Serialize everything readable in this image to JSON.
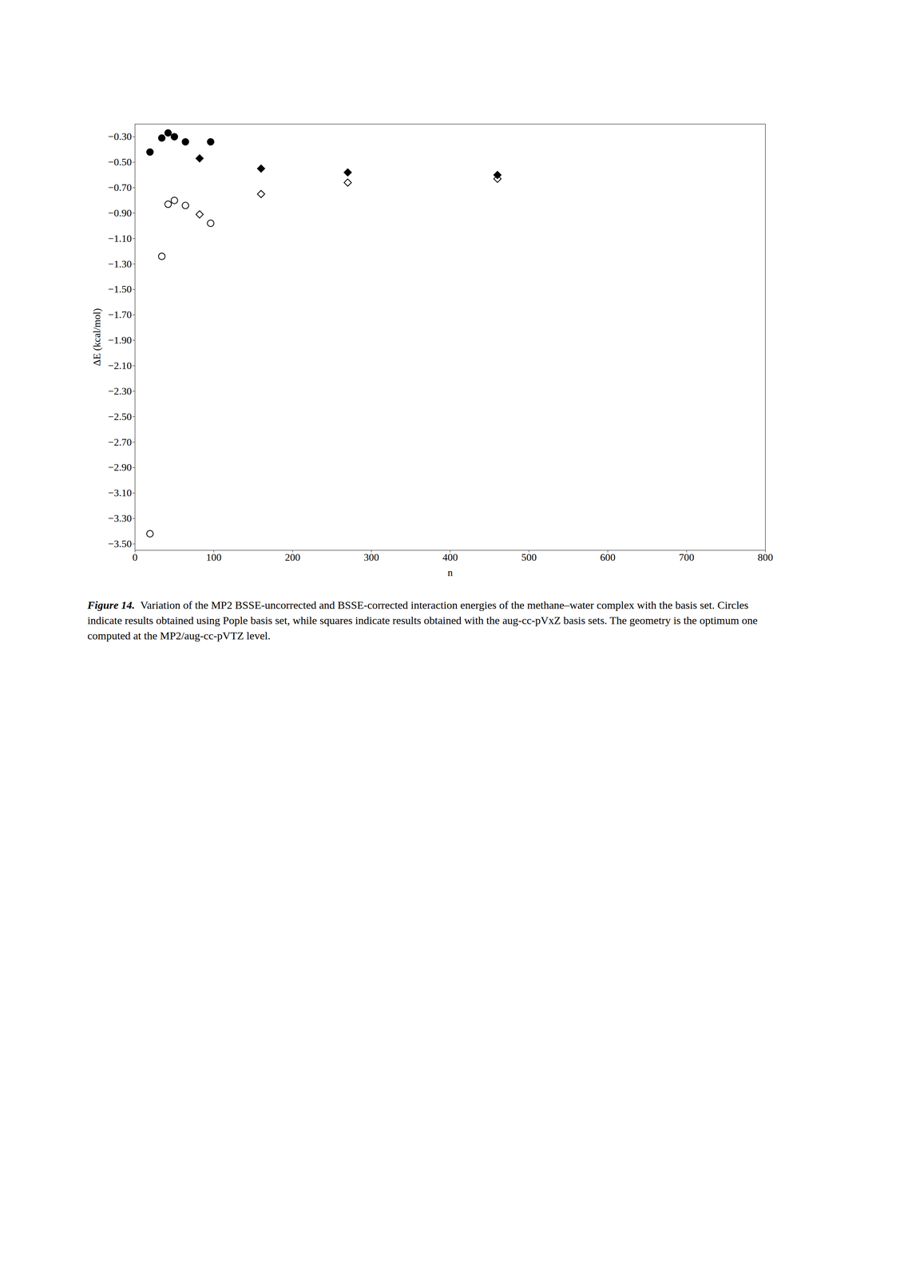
{
  "chart_data": {
    "type": "scatter",
    "title": "Figure 14.",
    "subtitle": "Variation of the MP2 BSSE-uncorrected and BSSE-corrected interaction energies of the methane–water complex with the basis set. Circles indicate results obtained using Pople basis set, while squares indicate results obtained with the aug-cc-pVxZ basis sets. The geometry is the optimum one computed at the MP2/aug-cc-pVTZ level.",
    "xlabel": "n",
    "ylabel": "ΔE (kcal/mol)",
    "xlim": [
      0,
      800
    ],
    "ylim": [
      -3.55,
      -0.2
    ],
    "xticks": [
      0,
      100,
      200,
      300,
      400,
      500,
      600,
      700,
      800
    ],
    "yticks": [
      {
        "value": -3.5,
        "label": "−3.50"
      },
      {
        "value": -3.3,
        "label": "−3.30"
      },
      {
        "value": -3.1,
        "label": "−3.10"
      },
      {
        "value": -2.9,
        "label": "−2.90"
      },
      {
        "value": -2.7,
        "label": "−2.70"
      },
      {
        "value": -2.5,
        "label": "−2.50"
      },
      {
        "value": -2.3,
        "label": "−2.30"
      },
      {
        "value": -2.1,
        "label": "−2.10"
      },
      {
        "value": -1.9,
        "label": "−1.90"
      },
      {
        "value": -1.7,
        "label": "−1.70"
      },
      {
        "value": -1.5,
        "label": "−1.50"
      },
      {
        "value": -1.3,
        "label": "−1.30"
      },
      {
        "value": -1.1,
        "label": "−1.10"
      },
      {
        "value": -0.9,
        "label": "−0.90"
      },
      {
        "value": -0.7,
        "label": "−0.70"
      },
      {
        "value": -0.5,
        "label": "−0.50"
      },
      {
        "value": -0.3,
        "label": "−0.30"
      }
    ],
    "grid": false,
    "series": [
      {
        "x": [
          19,
          34,
          42,
          50,
          64,
          96
        ],
        "values": [
          -3.42,
          -1.24,
          -0.83,
          -0.8,
          -0.84,
          -0.98
        ],
        "marker": "circle-open",
        "color": "#000000"
      },
      {
        "x": [
          19,
          34,
          42,
          50,
          64,
          96
        ],
        "values": [
          -0.42,
          -0.31,
          -0.27,
          -0.3,
          -0.34,
          -0.34
        ],
        "marker": "circle",
        "color": "#000000"
      },
      {
        "x": [
          82,
          160,
          270,
          460
        ],
        "values": [
          -0.91,
          -0.75,
          -0.66,
          -0.63
        ],
        "marker": "diamond-open",
        "color": "#000000"
      },
      {
        "x": [
          82,
          160,
          270,
          460
        ],
        "values": [
          -0.47,
          -0.55,
          -0.58,
          -0.6
        ],
        "marker": "diamond",
        "color": "#000000"
      }
    ]
  }
}
